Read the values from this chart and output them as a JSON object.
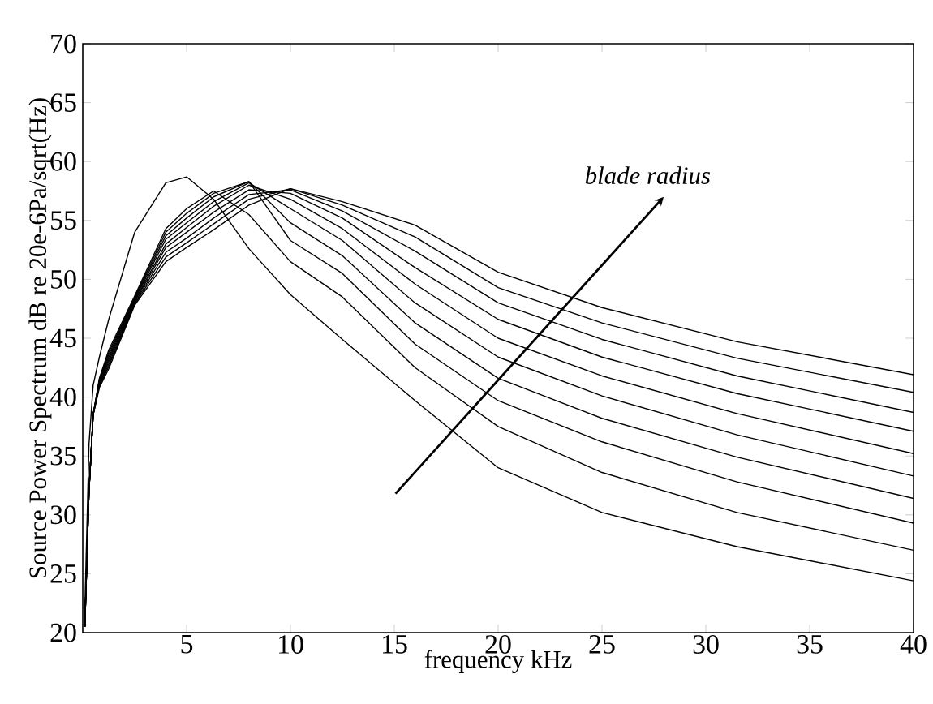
{
  "chart_data": {
    "type": "line",
    "xlabel": "frequency kHz",
    "ylabel": "Source Power Spectrum dB re 20e-6Pa/sqrt(Hz)",
    "x": [
      0.1,
      0.3,
      0.5,
      0.8,
      1.25,
      2.5,
      4,
      5,
      6.3,
      8,
      10,
      12.5,
      16,
      20,
      25,
      31.5,
      40
    ],
    "series": [
      {
        "color": "#000000",
        "values": [
          22,
          36,
          41,
          43.4,
          46.6,
          54.0,
          58.2,
          58.7,
          56.8,
          52.6,
          48.7,
          44.9,
          39.7,
          34.0,
          30.2,
          27.3,
          24.4
        ]
      },
      {
        "color": "#000000",
        "values": [
          20.5,
          32,
          38.5,
          41.6,
          44.0,
          48.6,
          54.3,
          56.0,
          57.5,
          55.5,
          51.5,
          48.5,
          42.5,
          37.5,
          33.6,
          30.2,
          27.0
        ]
      },
      {
        "color": "#000000",
        "values": [
          20.5,
          32,
          38.5,
          41.5,
          43.8,
          48.5,
          54.0,
          55.6,
          57.3,
          58.3,
          53.3,
          50.5,
          44.5,
          39.7,
          36.2,
          32.8,
          29.3
        ]
      },
      {
        "color": "#000000",
        "values": [
          20.5,
          32,
          38.5,
          41.4,
          43.6,
          48.4,
          53.7,
          55.2,
          57.0,
          58.3,
          54.8,
          52.0,
          46.3,
          41.6,
          38.2,
          34.9,
          31.4
        ]
      },
      {
        "color": "#000000",
        "values": [
          20.5,
          32,
          38.5,
          41.3,
          43.4,
          48.3,
          53.4,
          54.8,
          56.6,
          58.2,
          56.0,
          53.3,
          48.0,
          43.4,
          40.1,
          36.8,
          33.3
        ]
      },
      {
        "color": "#000000",
        "values": [
          20.5,
          32,
          38.5,
          41.2,
          43.2,
          48.2,
          53.0,
          54.4,
          56.2,
          58.0,
          56.8,
          54.3,
          49.6,
          45.0,
          41.8,
          38.6,
          35.2
        ]
      },
      {
        "color": "#000000",
        "values": [
          20.5,
          32,
          38.5,
          41.1,
          43.0,
          48.1,
          52.7,
          54.0,
          55.7,
          57.6,
          57.3,
          55.2,
          51.0,
          46.6,
          43.4,
          40.3,
          37.1
        ]
      },
      {
        "color": "#000000",
        "values": [
          20.5,
          32,
          38.5,
          41.0,
          42.8,
          48.0,
          52.3,
          53.5,
          55.2,
          57.2,
          57.6,
          55.8,
          52.4,
          48.0,
          44.9,
          41.8,
          38.7
        ]
      },
      {
        "color": "#000000",
        "values": [
          20.5,
          32,
          38.5,
          40.9,
          42.6,
          47.9,
          51.9,
          53.1,
          54.7,
          56.8,
          57.7,
          56.3,
          53.6,
          49.3,
          46.3,
          43.3,
          40.4
        ]
      },
      {
        "color": "#000000",
        "values": [
          20.5,
          32,
          38.5,
          40.8,
          42.4,
          47.8,
          51.5,
          52.7,
          54.2,
          56.3,
          57.7,
          56.6,
          54.6,
          50.6,
          47.6,
          44.7,
          41.9
        ]
      }
    ],
    "xlim": [
      0,
      40
    ],
    "ylim": [
      20,
      70
    ],
    "xticks": [
      5,
      10,
      15,
      20,
      25,
      30,
      35,
      40
    ],
    "yticks": [
      20,
      25,
      30,
      35,
      40,
      45,
      50,
      55,
      60,
      65,
      70
    ],
    "annotations": [
      "blade radius"
    ],
    "grid": false,
    "line_style": "solid"
  }
}
